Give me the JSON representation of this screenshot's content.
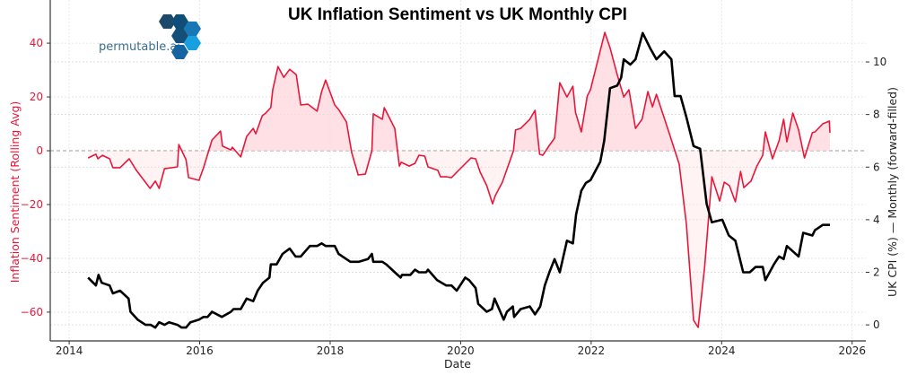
{
  "chart_data": {
    "type": "line",
    "title": "UK Inflation Sentiment vs UK Monthly CPI",
    "xlabel": "Date",
    "x_ticks": [
      "2014",
      "2016",
      "2018",
      "2020",
      "2022",
      "2024",
      "2026"
    ],
    "xlim": [
      2013.71,
      2026.21
    ],
    "grid": true,
    "legend": "none",
    "left_axis": {
      "label": "Inflation Sentiment (Rolling Avg)",
      "ylim": [
        -70.7,
        46.7
      ],
      "ticks": [
        40,
        20,
        0,
        -20,
        -40,
        -60
      ],
      "tick_labels": [
        "40",
        "20",
        "0",
        "−20",
        "−40",
        "−60"
      ],
      "color": "#e8173a"
    },
    "right_axis": {
      "label": "UK CPI (%) — Monthly (forward-filled)",
      "ylim": [
        -0.61,
        11.4
      ],
      "ticks": [
        0,
        2,
        4,
        6,
        8,
        10
      ],
      "tick_labels": [
        "0",
        "2",
        "4",
        "6",
        "8",
        "10"
      ],
      "color": "#000000"
    },
    "series": [
      {
        "axis": "left",
        "color": "#e8173a",
        "fill_color": "#ffd6dc",
        "fill_to_zero": true,
        "x": [
          2014.29,
          2014.41,
          2014.44,
          2014.51,
          2014.62,
          2014.67,
          2014.78,
          2014.92,
          2015.03,
          2015.24,
          2015.32,
          2015.38,
          2015.46,
          2015.66,
          2015.68,
          2015.79,
          2015.83,
          2015.99,
          2016.06,
          2016.19,
          2016.32,
          2016.35,
          2016.48,
          2016.5,
          2016.63,
          2016.72,
          2016.82,
          2016.86,
          2016.96,
          2017.0,
          2017.09,
          2017.12,
          2017.2,
          2017.29,
          2017.38,
          2017.48,
          2017.55,
          2017.66,
          2017.8,
          2017.87,
          2017.93,
          2018.07,
          2018.13,
          2018.25,
          2018.33,
          2018.43,
          2018.54,
          2018.64,
          2018.66,
          2018.8,
          2018.83,
          2018.99,
          2019.06,
          2019.09,
          2019.21,
          2019.3,
          2019.36,
          2019.45,
          2019.5,
          2019.65,
          2019.69,
          2019.78,
          2019.86,
          2019.98,
          2020.16,
          2020.23,
          2020.3,
          2020.4,
          2020.49,
          2020.53,
          2020.64,
          2020.81,
          2020.84,
          2020.92,
          2021.06,
          2021.14,
          2021.21,
          2021.26,
          2021.36,
          2021.44,
          2021.52,
          2021.63,
          2021.72,
          2021.76,
          2021.85,
          2021.94,
          2021.99,
          2022.21,
          2022.29,
          2022.4,
          2022.5,
          2022.58,
          2022.68,
          2022.78,
          2022.87,
          2022.94,
          2023.0,
          2023.19,
          2023.35,
          2023.46,
          2023.57,
          2023.64,
          2023.74,
          2023.85,
          2023.97,
          2024.04,
          2024.12,
          2024.21,
          2024.29,
          2024.34,
          2024.45,
          2024.54,
          2024.63,
          2024.67,
          2024.78,
          2024.88,
          2024.95,
          2025.0,
          2025.09,
          2025.18,
          2025.27,
          2025.39,
          2025.43,
          2025.55,
          2025.65,
          2025.66
        ],
        "y": [
          -2.7,
          -1.3,
          -3.0,
          -1.7,
          -3.0,
          -6.3,
          -6.3,
          -3.0,
          -7.3,
          -14.0,
          -11.3,
          -14.0,
          -6.7,
          -6.0,
          2.3,
          -3.3,
          -10.0,
          -11.0,
          -6.3,
          4.0,
          7.3,
          1.7,
          0.3,
          1.3,
          -2.3,
          5.3,
          8.3,
          6.3,
          13.0,
          13.7,
          16.0,
          22.7,
          31.3,
          27.3,
          30.3,
          28.3,
          17.0,
          17.3,
          14.7,
          22.0,
          26.3,
          17.0,
          15.3,
          10.7,
          -0.7,
          -9.0,
          -8.7,
          0.0,
          13.7,
          11.7,
          16.0,
          8.3,
          -5.7,
          -4.3,
          -5.7,
          -4.7,
          -1.7,
          -2.0,
          -6.0,
          -7.3,
          -9.7,
          -9.7,
          -10.0,
          -7.0,
          -2.7,
          -3.0,
          -8.0,
          -13.0,
          -19.7,
          -16.7,
          -11.7,
          0.0,
          7.7,
          8.3,
          11.7,
          15.0,
          -1.3,
          -1.7,
          2.0,
          4.7,
          25.3,
          20.0,
          24.0,
          14.3,
          7.0,
          20.3,
          22.7,
          44.0,
          38.3,
          28.3,
          20.0,
          22.7,
          8.3,
          11.7,
          22.0,
          16.3,
          21.0,
          7.0,
          -5.0,
          -27.3,
          -63.0,
          -65.7,
          -43.0,
          -9.7,
          -18.7,
          -11.7,
          -13.0,
          -19.0,
          -7.7,
          -13.7,
          -11.3,
          -5.7,
          -1.7,
          7.0,
          -3.0,
          3.7,
          11.7,
          3.3,
          14.0,
          7.7,
          -2.7,
          6.7,
          7.0,
          10.0,
          11.0,
          6.7
        ]
      },
      {
        "axis": "right",
        "color": "#000000",
        "x": [
          2014.29,
          2014.41,
          2014.45,
          2014.5,
          2014.62,
          2014.67,
          2014.78,
          2014.91,
          2014.94,
          2015.05,
          2015.17,
          2015.25,
          2015.32,
          2015.38,
          2015.46,
          2015.53,
          2015.66,
          2015.72,
          2015.79,
          2015.86,
          2015.99,
          2016.06,
          2016.12,
          2016.19,
          2016.34,
          2016.48,
          2016.52,
          2016.63,
          2016.72,
          2016.82,
          2016.89,
          2016.97,
          2017.07,
          2017.09,
          2017.18,
          2017.27,
          2017.38,
          2017.47,
          2017.55,
          2017.69,
          2017.8,
          2017.87,
          2017.93,
          2018.07,
          2018.13,
          2018.31,
          2018.44,
          2018.58,
          2018.64,
          2018.66,
          2018.8,
          2018.86,
          2018.99,
          2019.08,
          2019.1,
          2019.23,
          2019.3,
          2019.36,
          2019.47,
          2019.5,
          2019.64,
          2019.78,
          2019.86,
          2019.94,
          2020.07,
          2020.13,
          2020.23,
          2020.27,
          2020.4,
          2020.48,
          2020.52,
          2020.59,
          2020.66,
          2020.71,
          2020.8,
          2020.82,
          2020.92,
          2021.06,
          2021.14,
          2021.22,
          2021.29,
          2021.36,
          2021.44,
          2021.52,
          2021.63,
          2021.72,
          2021.77,
          2021.85,
          2021.92,
          2021.99,
          2022.14,
          2022.2,
          2022.29,
          2022.4,
          2022.46,
          2022.5,
          2022.6,
          2022.68,
          2022.79,
          2022.91,
          2023.0,
          2023.12,
          2023.23,
          2023.28,
          2023.37,
          2023.46,
          2023.57,
          2023.67,
          2023.77,
          2023.85,
          2024.01,
          2024.11,
          2024.21,
          2024.33,
          2024.43,
          2024.52,
          2024.63,
          2024.67,
          2024.8,
          2024.88,
          2024.95,
          2025.0,
          2025.18,
          2025.25,
          2025.39,
          2025.43,
          2025.55,
          2025.66
        ],
        "y": [
          1.8,
          1.5,
          1.9,
          1.6,
          1.5,
          1.2,
          1.3,
          1.0,
          0.5,
          0.2,
          0.0,
          0.0,
          -0.1,
          0.1,
          0.0,
          0.1,
          0.0,
          -0.1,
          -0.1,
          0.1,
          0.2,
          0.3,
          0.3,
          0.5,
          0.3,
          0.5,
          0.6,
          0.6,
          1.0,
          0.9,
          1.3,
          1.6,
          1.8,
          2.3,
          2.3,
          2.7,
          2.9,
          2.6,
          2.6,
          3.0,
          3.0,
          3.1,
          3.0,
          3.0,
          2.7,
          2.4,
          2.4,
          2.5,
          2.7,
          2.4,
          2.4,
          2.3,
          2.0,
          1.8,
          1.9,
          1.9,
          2.1,
          2.0,
          2.0,
          2.1,
          1.7,
          1.5,
          1.5,
          1.3,
          1.8,
          1.7,
          1.4,
          0.8,
          0.5,
          0.6,
          1.0,
          0.6,
          0.2,
          0.5,
          0.7,
          0.3,
          0.6,
          0.7,
          0.4,
          0.7,
          1.5,
          2.0,
          2.5,
          2.0,
          3.2,
          3.1,
          4.2,
          5.1,
          5.4,
          5.5,
          6.2,
          7.0,
          9.0,
          9.1,
          9.4,
          10.1,
          9.9,
          10.1,
          11.1,
          10.5,
          10.1,
          10.4,
          10.1,
          8.7,
          8.7,
          7.9,
          6.8,
          6.7,
          4.6,
          3.9,
          4.0,
          3.4,
          3.2,
          2.0,
          2.0,
          2.2,
          2.2,
          1.7,
          2.3,
          2.6,
          2.5,
          3.0,
          2.6,
          3.5,
          3.4,
          3.6,
          3.8,
          3.8
        ]
      }
    ]
  },
  "logo": {
    "text": "permutable.ai"
  }
}
